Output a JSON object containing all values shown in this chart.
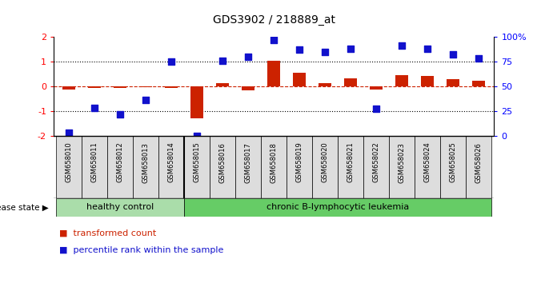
{
  "title": "GDS3902 / 218889_at",
  "samples": [
    "GSM658010",
    "GSM658011",
    "GSM658012",
    "GSM658013",
    "GSM658014",
    "GSM658015",
    "GSM658016",
    "GSM658017",
    "GSM658018",
    "GSM658019",
    "GSM658020",
    "GSM658021",
    "GSM658022",
    "GSM658023",
    "GSM658024",
    "GSM658025",
    "GSM658026"
  ],
  "transformed_count": [
    -0.12,
    -0.05,
    -0.05,
    -0.04,
    -0.05,
    -1.3,
    0.12,
    -0.15,
    1.02,
    0.55,
    0.12,
    0.32,
    -0.12,
    0.45,
    0.42,
    0.28,
    0.22
  ],
  "percentile_rank": [
    3,
    28,
    22,
    36,
    75,
    0,
    76,
    80,
    97,
    87,
    85,
    88,
    27,
    91,
    88,
    82,
    78
  ],
  "group_labels": [
    "healthy control",
    "chronic B-lymphocytic leukemia"
  ],
  "group_boundary": 5,
  "hc_color": "#aaddaa",
  "leuk_color": "#66cc66",
  "bar_color": "#cc2200",
  "dot_color": "#1111cc",
  "ylim_left": [
    -2,
    2
  ],
  "ylim_right": [
    0,
    100
  ],
  "yticks_left": [
    -2,
    -1,
    0,
    1,
    2
  ],
  "yticks_right": [
    0,
    25,
    50,
    75,
    100
  ],
  "yticklabels_right": [
    "0",
    "25",
    "50",
    "75",
    "100%"
  ],
  "background_color": "#ffffff",
  "disease_state_label": "disease state",
  "legend_items": [
    "transformed count",
    "percentile rank within the sample"
  ]
}
